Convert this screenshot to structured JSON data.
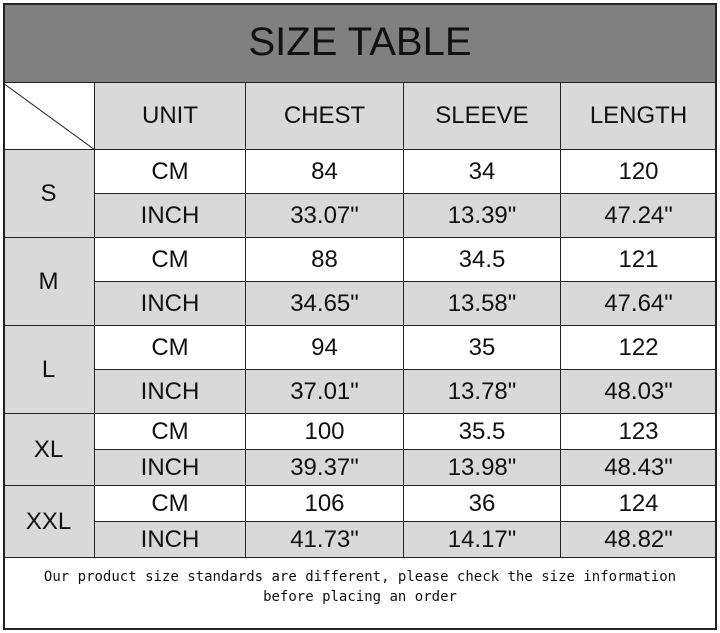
{
  "title": "SIZE TABLE",
  "headers": [
    "UNIT",
    "CHEST",
    "SLEEVE",
    "LENGTH"
  ],
  "sizes": [
    {
      "size": "S",
      "rows": [
        {
          "unit": "CM",
          "chest": "84",
          "sleeve": "34",
          "length": "120"
        },
        {
          "unit": "INCH",
          "chest": "33.07\"",
          "sleeve": "13.39\"",
          "length": "47.24\""
        }
      ]
    },
    {
      "size": "M",
      "rows": [
        {
          "unit": "CM",
          "chest": "88",
          "sleeve": "34.5",
          "length": "121"
        },
        {
          "unit": "INCH",
          "chest": "34.65\"",
          "sleeve": "13.58\"",
          "length": "47.64\""
        }
      ]
    },
    {
      "size": "L",
      "rows": [
        {
          "unit": "CM",
          "chest": "94",
          "sleeve": "35",
          "length": "122"
        },
        {
          "unit": "INCH",
          "chest": "37.01\"",
          "sleeve": "13.78\"",
          "length": "48.03\""
        }
      ]
    },
    {
      "size": "XL",
      "rows": [
        {
          "unit": "CM",
          "chest": "100",
          "sleeve": "35.5",
          "length": "123"
        },
        {
          "unit": "INCH",
          "chest": "39.37\"",
          "sleeve": "13.98\"",
          "length": "48.43\""
        }
      ]
    },
    {
      "size": "XXL",
      "rows": [
        {
          "unit": "CM",
          "chest": "106",
          "sleeve": "36",
          "length": "124"
        },
        {
          "unit": "INCH",
          "chest": "41.73\"",
          "sleeve": "14.17\"",
          "length": "48.82\""
        }
      ]
    }
  ],
  "note": "Our product size standards are different, please check the size information before placing an order",
  "colors": {
    "title_bg": "#808080",
    "header_bg": "#d9d9d9",
    "inch_row_bg": "#d9d9d9",
    "cm_row_bg": "#ffffff"
  }
}
